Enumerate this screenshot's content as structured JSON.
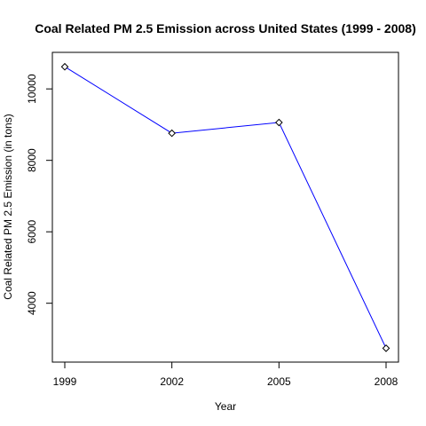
{
  "chart_data": {
    "type": "line",
    "title": "Coal Related PM 2.5 Emission across United States (1999 - 2008)",
    "xlabel": "Year",
    "ylabel": "Coal Related PM 2.5 Emission (in tons)",
    "x": [
      1999,
      2002,
      2005,
      2008
    ],
    "x_tick_labels": [
      "1999",
      "2002",
      "2005",
      "2008"
    ],
    "y_ticks": [
      4000,
      6000,
      8000,
      10000
    ],
    "y_tick_labels": [
      "4000",
      "6000",
      "8000",
      "10000"
    ],
    "xlim": [
      1999,
      2008
    ],
    "ylim": [
      2700,
      10700
    ],
    "series": [
      {
        "values": [
          10620,
          8760,
          9060,
          2740
        ],
        "color": "#0000ff",
        "marker": "diamond"
      }
    ],
    "grid": false,
    "legend": "none"
  }
}
